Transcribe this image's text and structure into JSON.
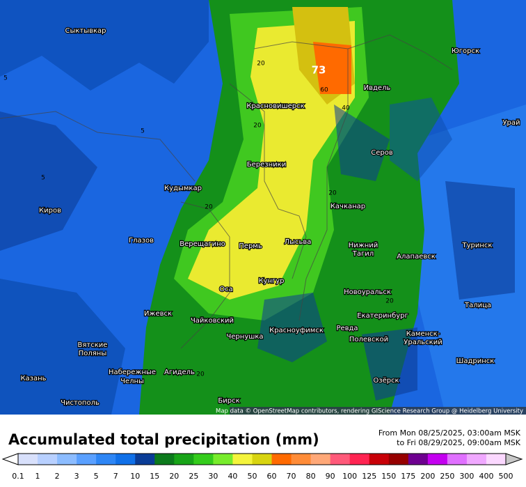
{
  "map": {
    "attribution": "Map data © OpenStreetMap contributors, rendering GIScience Research Group @ Heidelberg University",
    "peak": "73",
    "contours": [
      "60",
      "40",
      "20",
      "20",
      "20",
      "20",
      "5",
      "5",
      "5",
      "20",
      "20"
    ],
    "cities": [
      "Сыктывкар",
      "Югорск",
      "Ивдель",
      "Красновишерск",
      "Урай",
      "Серов",
      "Березники",
      "Кудымкар",
      "Киров",
      "Качканар",
      "Глазов",
      "Верещагино",
      "Пермь",
      "Лысьва",
      "Нижний",
      "Тагил",
      "Туринск",
      "Алапаевск",
      "Оса",
      "Кунгур",
      "Новоуральск",
      "Талица",
      "Ижевск",
      "Чайковский",
      "Красноуфимск",
      "Екатеринбург",
      "Ревда",
      "Каменск-",
      "Уральский",
      "Полевской",
      "Чернушка",
      "Вятские",
      "Поляны",
      "Шадринск",
      "Набережные",
      "Челны",
      "Агидель",
      "Казань",
      "Озёрск",
      "Чистополь",
      "Бирск"
    ]
  },
  "legend": {
    "title": "Accumulated total precipitation (mm)",
    "from": "From Mon 08/25/2025, 03:00am MSK",
    "to": "to Fri 08/29/2025, 09:00am MSK",
    "levels": [
      "0.1",
      "1",
      "2",
      "3",
      "5",
      "7",
      "10",
      "15",
      "20",
      "25",
      "30",
      "40",
      "50",
      "60",
      "70",
      "80",
      "90",
      "100",
      "125",
      "150",
      "175",
      "200",
      "250",
      "300",
      "400",
      "500"
    ],
    "colors": [
      "#d8e0fb",
      "#b8d0ff",
      "#8cbcff",
      "#5aa0ff",
      "#2e86f5",
      "#1070e8",
      "#0a3c96",
      "#0c7a1c",
      "#18a418",
      "#34cc1c",
      "#78ec2c",
      "#f4f43c",
      "#d8d410",
      "#ff6a00",
      "#ff8c38",
      "#ffa878",
      "#ff5a7a",
      "#ff2452",
      "#c80008",
      "#960000",
      "#6e0090",
      "#c400f0",
      "#e070ff",
      "#f0a8ff",
      "#fbd8ff"
    ],
    "under_color": "#ffffff",
    "over_color": "#c8c8c8"
  }
}
